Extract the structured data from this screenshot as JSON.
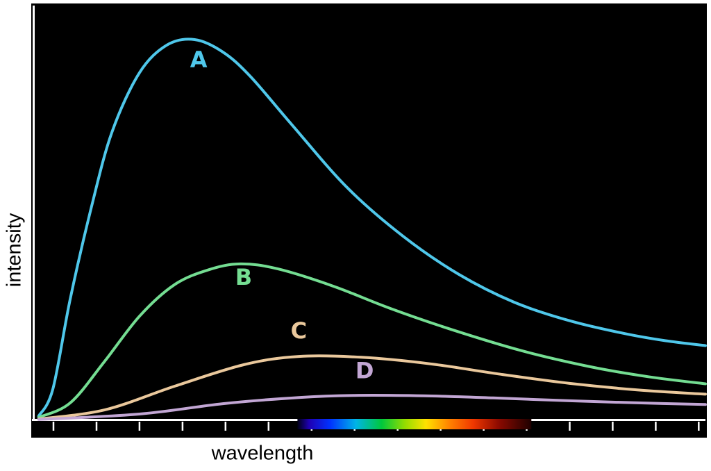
{
  "colors": {
    "background": "#ffffff",
    "plot_background": "#000000",
    "axis": "#ffffff",
    "text": "#000000"
  },
  "chart_data": {
    "type": "line",
    "title": "",
    "xlabel": "wavelength",
    "ylabel": "intensity",
    "x_range": [
      0,
      1
    ],
    "y_range": [
      0,
      1
    ],
    "grid": false,
    "legend": "inline-curve-labels",
    "axis_ticks": {
      "count": 16
    },
    "spectrum_band": {
      "start": 0.393,
      "end": 0.741,
      "stops": [
        {
          "offset": 0,
          "color": "#000014"
        },
        {
          "offset": 0.05,
          "color": "#1e00b4"
        },
        {
          "offset": 0.14,
          "color": "#0033ff"
        },
        {
          "offset": 0.25,
          "color": "#00b4e6"
        },
        {
          "offset": 0.36,
          "color": "#00c83c"
        },
        {
          "offset": 0.46,
          "color": "#96dc00"
        },
        {
          "offset": 0.55,
          "color": "#ffe100"
        },
        {
          "offset": 0.65,
          "color": "#ff8200"
        },
        {
          "offset": 0.75,
          "color": "#f03800"
        },
        {
          "offset": 0.86,
          "color": "#8c0a00"
        },
        {
          "offset": 1,
          "color": "#1e0000"
        }
      ]
    },
    "series": [
      {
        "name": "A",
        "color": "#4FC7EA",
        "label": {
          "text": "A",
          "x": 0.246,
          "y": 0.851
        },
        "points": [
          [
            0.008,
            0.01
          ],
          [
            0.029,
            0.075
          ],
          [
            0.055,
            0.293
          ],
          [
            0.086,
            0.511
          ],
          [
            0.117,
            0.695
          ],
          [
            0.158,
            0.838
          ],
          [
            0.199,
            0.905
          ],
          [
            0.24,
            0.918
          ],
          [
            0.282,
            0.888
          ],
          [
            0.323,
            0.829
          ],
          [
            0.385,
            0.712
          ],
          [
            0.467,
            0.561
          ],
          [
            0.55,
            0.444
          ],
          [
            0.633,
            0.352
          ],
          [
            0.715,
            0.285
          ],
          [
            0.798,
            0.24
          ],
          [
            0.88,
            0.209
          ],
          [
            0.94,
            0.192
          ],
          [
            1.0,
            0.18
          ]
        ]
      },
      {
        "name": "B",
        "color": "#74DD92",
        "label": {
          "text": "B",
          "x": 0.313,
          "y": 0.327
        },
        "points": [
          [
            0.008,
            0.007
          ],
          [
            0.055,
            0.042
          ],
          [
            0.106,
            0.142
          ],
          [
            0.158,
            0.251
          ],
          [
            0.21,
            0.327
          ],
          [
            0.261,
            0.363
          ],
          [
            0.308,
            0.377
          ],
          [
            0.364,
            0.365
          ],
          [
            0.447,
            0.323
          ],
          [
            0.529,
            0.271
          ],
          [
            0.622,
            0.219
          ],
          [
            0.726,
            0.168
          ],
          [
            0.829,
            0.129
          ],
          [
            0.915,
            0.105
          ],
          [
            1.0,
            0.088
          ]
        ]
      },
      {
        "name": "C",
        "color": "#EAC89C",
        "label": {
          "text": "C",
          "x": 0.395,
          "y": 0.198
        },
        "points": [
          [
            0.008,
            0.003
          ],
          [
            0.106,
            0.025
          ],
          [
            0.21,
            0.082
          ],
          [
            0.313,
            0.134
          ],
          [
            0.395,
            0.154
          ],
          [
            0.488,
            0.152
          ],
          [
            0.591,
            0.136
          ],
          [
            0.695,
            0.111
          ],
          [
            0.798,
            0.089
          ],
          [
            0.9,
            0.073
          ],
          [
            1.0,
            0.063
          ]
        ]
      },
      {
        "name": "D",
        "color": "#C2A6D4",
        "label": {
          "text": "D",
          "x": 0.493,
          "y": 0.101
        },
        "points": [
          [
            0.008,
            0.002
          ],
          [
            0.158,
            0.015
          ],
          [
            0.282,
            0.04
          ],
          [
            0.395,
            0.055
          ],
          [
            0.478,
            0.06
          ],
          [
            0.581,
            0.059
          ],
          [
            0.684,
            0.054
          ],
          [
            0.798,
            0.047
          ],
          [
            0.9,
            0.042
          ],
          [
            1.0,
            0.038
          ]
        ]
      }
    ]
  }
}
